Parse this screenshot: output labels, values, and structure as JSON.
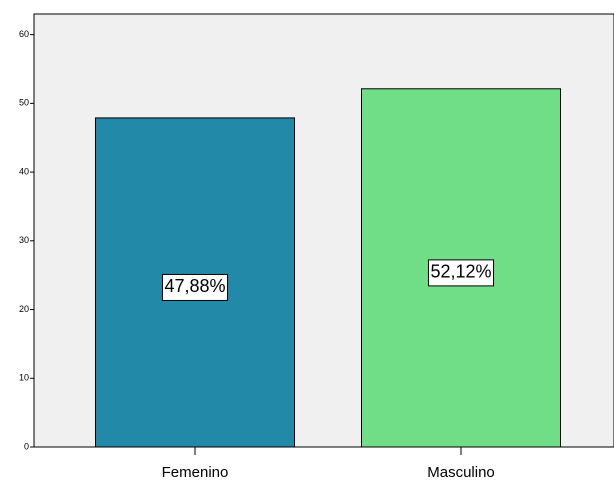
{
  "chart_data": {
    "type": "bar",
    "categories": [
      "Femenino",
      "Masculino"
    ],
    "values": [
      47.88,
      52.12
    ],
    "value_labels": [
      "47,88%",
      "52,12%"
    ],
    "colors": [
      "#2389a8",
      "#70de86"
    ],
    "ylim": [
      0,
      63
    ],
    "yticks": [
      0,
      10,
      20,
      30,
      40,
      50,
      60
    ]
  }
}
